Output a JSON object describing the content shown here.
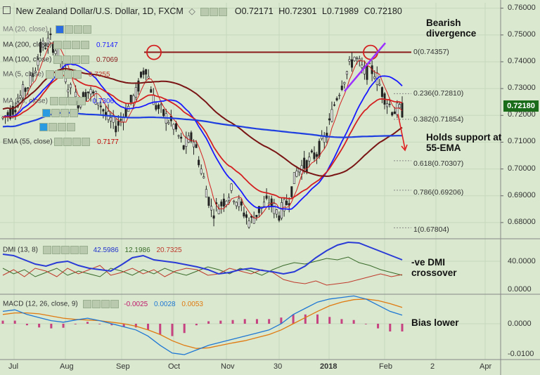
{
  "header": {
    "symbol": "New Zealand Dollar/U.S. Dollar, 1D, FXCM",
    "ohlc": [
      "O0.72171",
      "H0.72301",
      "L0.71989",
      "C0.72180"
    ]
  },
  "ma_legend": [
    {
      "label": "MA (20, close)",
      "value": "",
      "color": "#1a1aff"
    },
    {
      "label": "MA (200, close)",
      "value": "0.7147",
      "color": "#1a1aff"
    },
    {
      "label": "MA (100, close)",
      "value": "0.7069",
      "color": "#8b1a1a"
    },
    {
      "label": "MA (5, close)",
      "value": "0.7255",
      "color": "#c0392b"
    },
    {
      "label": "MA (20, close)",
      "value": "0.7306",
      "color": "#1a1aff"
    },
    {
      "label": "",
      "value": "",
      "color": "#333"
    },
    {
      "label": "",
      "value": "",
      "color": "#333"
    },
    {
      "label": "EMA (55, close)",
      "value": "0.7177",
      "color": "#c00000"
    }
  ],
  "annotations": {
    "bearish": [
      "Bearish",
      "divergence"
    ],
    "holds": [
      "Holds support at",
      "55-EMA"
    ],
    "dmi_cross": [
      "-ve DMI",
      "crossover"
    ],
    "bias": "Bias lower"
  },
  "fib_levels": [
    {
      "label": "0(0.74357)",
      "value": 0.74357
    },
    {
      "label": "0.236(0.72810)",
      "value": 0.7281
    },
    {
      "label": "0.382(0.71854)",
      "value": 0.71854
    },
    {
      "label": "0.618(0.70307)",
      "value": 0.70307
    },
    {
      "label": "0.786(0.69206)",
      "value": 0.69206
    },
    {
      "label": "1(0.67804)",
      "value": 0.67804
    }
  ],
  "price_axis": [
    "0.76000",
    "0.75000",
    "0.74000",
    "0.73000",
    "0.72000",
    "0.71000",
    "0.70000",
    "0.69000",
    "0.68000"
  ],
  "current_price": {
    "label": "0.72180",
    "color": "#1a6b1a"
  },
  "dmi": {
    "title": "DMI (13, 8)",
    "values": [
      {
        "text": "42.5986",
        "color": "#2233cc"
      },
      {
        "text": "12.1986",
        "color": "#3a6b2a"
      },
      {
        "text": "20.7325",
        "color": "#c0392b"
      }
    ],
    "axis": [
      "40.0000",
      "0.0000"
    ]
  },
  "macd": {
    "title": "MACD (12, 26, close, 9)",
    "values": [
      {
        "text": "-0.0025",
        "color": "#c0186b"
      },
      {
        "text": "0.0028",
        "color": "#1f77d4"
      },
      {
        "text": "0.0053",
        "color": "#e07a10"
      }
    ],
    "axis": [
      "0.0000",
      "-0.0100"
    ]
  },
  "time_axis": [
    "Jul",
    "Aug",
    "Sep",
    "Oct",
    "Nov",
    "30",
    "2018",
    "Feb",
    "2",
    "Apr"
  ],
  "chart_data": {
    "type": "line",
    "series": [
      {
        "name": "MA (5, close)",
        "values": [
          0.7255
        ]
      },
      {
        "name": "MA (20, close)",
        "values": [
          0.7306
        ]
      },
      {
        "name": "MA (100, close)",
        "values": [
          0.7069
        ]
      },
      {
        "name": "MA (200, close)",
        "values": [
          0.7147
        ]
      },
      {
        "name": "EMA (55, close)",
        "values": [
          0.7177
        ]
      }
    ],
    "price_path": [
      0.719,
      0.722,
      0.728,
      0.733,
      0.745,
      0.748,
      0.742,
      0.73,
      0.725,
      0.729,
      0.726,
      0.719,
      0.716,
      0.722,
      0.728,
      0.739,
      0.724,
      0.72,
      0.716,
      0.708,
      0.712,
      0.698,
      0.684,
      0.687,
      0.692,
      0.686,
      0.68,
      0.685,
      0.688,
      0.683,
      0.688,
      0.7,
      0.702,
      0.706,
      0.712,
      0.726,
      0.735,
      0.742,
      0.736,
      0.737,
      0.728,
      0.722,
      0.7218
    ],
    "ylim": [
      0.675,
      0.762
    ],
    "grid": true,
    "legend": "top-left"
  },
  "colors": {
    "background": "#d9e8cf",
    "ma_blue": "#1a1aff",
    "ma_red": "#d42020",
    "ma_maroon": "#7a1515",
    "ma_200": "#1f3fe0",
    "divergence": "#9b30ff",
    "circle": "#d42020"
  }
}
